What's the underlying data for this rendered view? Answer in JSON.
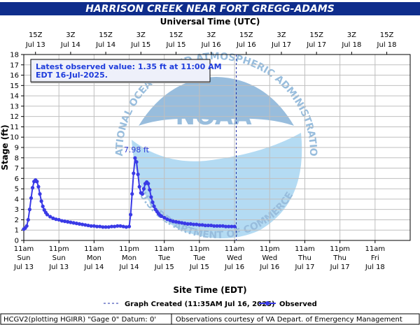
{
  "title": "HARRISON CREEK NEAR FORT GREGG-ADAMS",
  "top_axis_title": "Universal Time (UTC)",
  "y_axis_title": "Stage (ft)",
  "x_axis_title": "Site Time (EDT)",
  "top_ticks": [
    {
      "t": 4,
      "label1": "15Z",
      "label2": "Jul 13"
    },
    {
      "t": 16,
      "label1": "3Z",
      "label2": "Jul 14"
    },
    {
      "t": 28,
      "label1": "15Z",
      "label2": "Jul 14"
    },
    {
      "t": 40,
      "label1": "3Z",
      "label2": "Jul 15"
    },
    {
      "t": 52,
      "label1": "15Z",
      "label2": "Jul 15"
    },
    {
      "t": 64,
      "label1": "3Z",
      "label2": "Jul 16"
    },
    {
      "t": 76,
      "label1": "15Z",
      "label2": "Jul 16"
    },
    {
      "t": 88,
      "label1": "3Z",
      "label2": "Jul 17"
    },
    {
      "t": 100,
      "label1": "15Z",
      "label2": "Jul 17"
    },
    {
      "t": 112,
      "label1": "3Z",
      "label2": "Jul 18"
    },
    {
      "t": 124,
      "label1": "15Z",
      "label2": "Jul 18"
    }
  ],
  "bottom_ticks": [
    {
      "t": 0,
      "label1": "11am",
      "label2": "Sun",
      "label3": "Jul 13"
    },
    {
      "t": 12,
      "label1": "11pm",
      "label2": "Sun",
      "label3": "Jul 13"
    },
    {
      "t": 24,
      "label1": "11am",
      "label2": "Mon",
      "label3": "Jul 14"
    },
    {
      "t": 36,
      "label1": "11pm",
      "label2": "Mon",
      "label3": "Jul 14"
    },
    {
      "t": 48,
      "label1": "11am",
      "label2": "Tue",
      "label3": "Jul 15"
    },
    {
      "t": 60,
      "label1": "11pm",
      "label2": "Tue",
      "label3": "Jul 15"
    },
    {
      "t": 72,
      "label1": "11am",
      "label2": "Wed",
      "label3": "Jul 16"
    },
    {
      "t": 84,
      "label1": "11pm",
      "label2": "Wed",
      "label3": "Jul 16"
    },
    {
      "t": 96,
      "label1": "11am",
      "label2": "Thu",
      "label3": "Jul 17"
    },
    {
      "t": 108,
      "label1": "11pm",
      "label2": "Thu",
      "label3": "Jul 17"
    },
    {
      "t": 120,
      "label1": "11am",
      "label2": "Fri",
      "label3": "Jul 18"
    }
  ],
  "latest_observed": {
    "line1": "Latest observed value: 1.35 ft at 11:00 AM",
    "line2": "EDT 16-Jul-2025."
  },
  "peak_label": "7.98 ft",
  "legend": {
    "graph_created": "Graph Created (11:35AM Jul 16, 2025)",
    "observed": "Observed"
  },
  "footer": {
    "left": "HCGV2(plotting HGIRR) \"Gage 0\" Datum: 0'",
    "right": "Observations courtesy of VA Depart. of Emergency Management"
  },
  "watermark": {
    "center_text": "NOAA",
    "ring_text": "NATIONAL OCEANIC AND ATMOSPHERIC ADMINISTRATION",
    "ring_text_bottom": "U.S. DEPARTMENT OF COMMERCE"
  },
  "colors": {
    "banner": "#0f2d8c",
    "series": "#3a3ae6",
    "grid": "#bfbfbf",
    "callout_text": "#1e3cdc",
    "graph_created_line": "#1f2fa8"
  },
  "chart_data": {
    "type": "line",
    "title": "HARRISON CREEK NEAR FORT GREGG-ADAMS",
    "xlabel": "Site Time (EDT)",
    "ylabel": "Stage (ft)",
    "x_units": "hours after 11am EDT Sun Jul 13, 2025",
    "xlim": [
      0,
      132
    ],
    "ylim": [
      0,
      18
    ],
    "y_ticks": [
      0,
      1,
      2,
      3,
      4,
      5,
      6,
      7,
      8,
      9,
      10,
      11,
      12,
      13,
      14,
      15,
      16,
      17,
      18
    ],
    "grid": true,
    "graph_created_t": 72.58,
    "series": [
      {
        "name": "Observed",
        "x": [
          0,
          0.5,
          1,
          1.5,
          2,
          2.5,
          3,
          3.5,
          4,
          4.5,
          5,
          5.5,
          6,
          6.5,
          7,
          7.5,
          8,
          9,
          10,
          11,
          12,
          13,
          14,
          15,
          16,
          17,
          18,
          19,
          20,
          21,
          22,
          23,
          24,
          25,
          26,
          27,
          28,
          29,
          30,
          31,
          32,
          33,
          34,
          35,
          36,
          36.5,
          37,
          37.5,
          38,
          38.5,
          39,
          39.5,
          40,
          40.5,
          41,
          41.5,
          42,
          42.5,
          43,
          43.5,
          44,
          44.5,
          45,
          45.5,
          46,
          46.5,
          47,
          48,
          49,
          50,
          51,
          52,
          53,
          54,
          55,
          56,
          57,
          58,
          59,
          60,
          61,
          62,
          63,
          64,
          65,
          66,
          67,
          68,
          69,
          70,
          71,
          72
        ],
        "values": [
          1.1,
          1.2,
          1.4,
          2.0,
          3.0,
          4.1,
          5.1,
          5.7,
          5.85,
          5.7,
          5.2,
          4.5,
          3.8,
          3.3,
          2.95,
          2.7,
          2.5,
          2.3,
          2.15,
          2.05,
          2.0,
          1.9,
          1.85,
          1.8,
          1.75,
          1.7,
          1.65,
          1.6,
          1.55,
          1.5,
          1.45,
          1.4,
          1.4,
          1.35,
          1.35,
          1.3,
          1.3,
          1.3,
          1.35,
          1.35,
          1.4,
          1.4,
          1.35,
          1.3,
          1.35,
          2.5,
          4.5,
          6.5,
          7.98,
          7.6,
          6.4,
          5.2,
          4.6,
          4.5,
          5.0,
          5.5,
          5.65,
          5.5,
          4.9,
          4.2,
          3.7,
          3.3,
          3.0,
          2.8,
          2.6,
          2.45,
          2.35,
          2.2,
          2.05,
          1.95,
          1.85,
          1.8,
          1.75,
          1.7,
          1.65,
          1.6,
          1.6,
          1.55,
          1.55,
          1.5,
          1.5,
          1.45,
          1.45,
          1.45,
          1.4,
          1.4,
          1.4,
          1.4,
          1.35,
          1.35,
          1.35,
          1.35
        ]
      }
    ]
  }
}
